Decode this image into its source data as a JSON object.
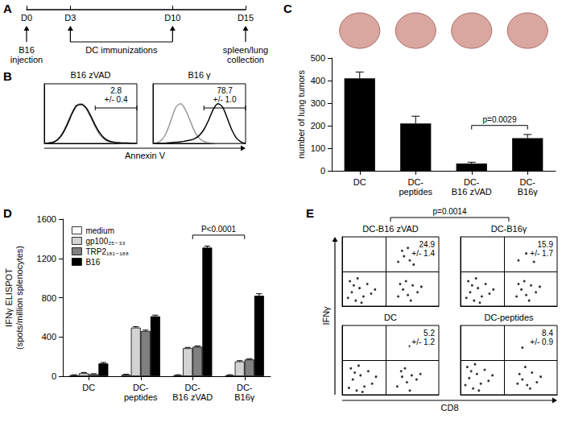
{
  "chart_data": [
    {
      "type": "timeline",
      "panel": "A",
      "xlim": [
        0,
        15
      ],
      "xticks": [
        {
          "value": 0,
          "label": "D0"
        },
        {
          "value": 3,
          "label": "D3"
        },
        {
          "value": 10,
          "label": "D10"
        },
        {
          "value": 15,
          "label": "D15"
        }
      ],
      "annotations": [
        {
          "x": 0,
          "text": "B16 injection"
        },
        {
          "x": [
            3,
            10
          ],
          "text": "DC immunizations"
        },
        {
          "x": 15,
          "text": "spleen/lung collection"
        }
      ]
    },
    {
      "type": "line",
      "panel": "B",
      "xlabel": "Annexin V",
      "tick_labels": false,
      "x": [
        0,
        0.5,
        1,
        1.5,
        2,
        2.5,
        3,
        3.5,
        4,
        4.5,
        5,
        5.5,
        6,
        6.5,
        7,
        7.5,
        8,
        8.5,
        9,
        9.5,
        10
      ],
      "xlim": [
        0,
        10
      ],
      "ylim": [
        0,
        150
      ],
      "subplots": [
        {
          "title": "B16 zVAD",
          "gate": [
            5.5,
            10
          ],
          "annotation": [
            "2.8",
            "+/- 0.4"
          ],
          "series": [
            {
              "color": "#999999",
              "values": [
                0,
                1,
                4,
                12,
                28,
                52,
                78,
                96,
                100,
                88,
                66,
                42,
                22,
                10,
                4,
                2,
                1,
                0,
                0,
                0,
                0
              ]
            },
            {
              "color": "#000000",
              "values": [
                0,
                1,
                3,
                10,
                25,
                48,
                75,
                95,
                98,
                90,
                70,
                46,
                26,
                13,
                6,
                3,
                2,
                1,
                1,
                0,
                0
              ]
            }
          ]
        },
        {
          "title": "B16 γ",
          "gate": [
            5.5,
            10
          ],
          "annotation": [
            "78.7",
            "+/- 1.0"
          ],
          "series": [
            {
              "color": "#999999",
              "values": [
                0,
                2,
                10,
                30,
                62,
                92,
                100,
                85,
                58,
                30,
                13,
                5,
                2,
                1,
                0,
                0,
                0,
                0,
                0,
                0,
                0
              ]
            },
            {
              "color": "#000000",
              "values": [
                0,
                0,
                0,
                1,
                2,
                3,
                4,
                6,
                8,
                12,
                20,
                35,
                58,
                85,
                100,
                92,
                65,
                35,
                14,
                4,
                0
              ]
            }
          ]
        }
      ]
    },
    {
      "type": "bar",
      "panel": "C",
      "ylabel": "number of lung tumors",
      "categories": [
        "DC",
        "DC-peptides",
        "DC-B16 zVAD",
        "DC-B16γ"
      ],
      "values": [
        410,
        210,
        32,
        145
      ],
      "errors": [
        28,
        32,
        6,
        16
      ],
      "color": "#000000",
      "ylim": [
        0,
        500
      ],
      "yticks": [
        0,
        100,
        200,
        300,
        400,
        500
      ],
      "comparisons": [
        {
          "from": "DC-B16 zVAD",
          "to": "DC-B16γ",
          "label": "p=0.0029"
        }
      ]
    },
    {
      "type": "bar",
      "panel": "D",
      "ylabel": "IFNγ ELISPOT (spots/million splenocytes)",
      "categories": [
        "DC",
        "DC-peptides",
        "DC-B16 zVAD",
        "DC-B16γ"
      ],
      "series": [
        {
          "name": "medium",
          "color": "#ffffff",
          "values": [
            10,
            15,
            10,
            10
          ],
          "errors": [
            5,
            5,
            5,
            5
          ]
        },
        {
          "name": "gp100₂₅₋₃₃",
          "color": "#d3d3d3",
          "values": [
            30,
            495,
            285,
            150
          ],
          "errors": [
            8,
            10,
            8,
            8
          ]
        },
        {
          "name": "TRP2₁₈₁₋₁₈₈",
          "color": "#808080",
          "values": [
            20,
            460,
            300,
            170
          ],
          "errors": [
            5,
            10,
            8,
            8
          ]
        },
        {
          "name": "B16",
          "color": "#000000",
          "values": [
            130,
            610,
            1310,
            820
          ],
          "errors": [
            10,
            12,
            15,
            20
          ]
        }
      ],
      "ylim": [
        0,
        1600
      ],
      "yticks": [
        0,
        400,
        800,
        1200,
        1600
      ],
      "legend": "top-left",
      "comparisons": [
        {
          "from": "DC-B16 zVAD",
          "to": "DC-B16γ",
          "label": "P<0.0001"
        }
      ]
    },
    {
      "type": "scatter",
      "panel": "E",
      "xlabel": "CD8",
      "ylabel": "IFNγ",
      "tick_labels": false,
      "xlim": [
        0,
        100
      ],
      "ylim": [
        0,
        100
      ],
      "color": "#000000",
      "comparisons": [
        {
          "from": "DC-B16 zVAD",
          "to": "DC-B16γ",
          "label": "p=0.0014"
        }
      ],
      "subplots": [
        {
          "title": "DC-B16 zVAD",
          "gates": {
            "x": 45,
            "y": 50
          },
          "annotation": [
            "24.9",
            "+/- 1.4"
          ],
          "points": [
            [
              6,
              12
            ],
            [
              10,
              20
            ],
            [
              14,
              8
            ],
            [
              18,
              26
            ],
            [
              22,
              14
            ],
            [
              26,
              32
            ],
            [
              12,
              30
            ],
            [
              30,
              18
            ],
            [
              20,
              5
            ],
            [
              34,
              24
            ],
            [
              8,
              36
            ],
            [
              16,
              40
            ],
            [
              58,
              14
            ],
            [
              63,
              24
            ],
            [
              68,
              16
            ],
            [
              73,
              30
            ],
            [
              66,
              36
            ],
            [
              78,
              20
            ],
            [
              71,
              8
            ],
            [
              60,
              32
            ],
            [
              82,
              28
            ],
            [
              58,
              64
            ],
            [
              64,
              72
            ],
            [
              70,
              66
            ],
            [
              76,
              78
            ],
            [
              68,
              84
            ],
            [
              80,
              70
            ],
            [
              62,
              80
            ],
            [
              74,
              60
            ],
            [
              84,
              86
            ]
          ]
        },
        {
          "title": "DC-B16γ",
          "gates": {
            "x": 45,
            "y": 50
          },
          "annotation": [
            "15.9",
            "+/- 1.7"
          ],
          "points": [
            [
              6,
              12
            ],
            [
              10,
              20
            ],
            [
              14,
              8
            ],
            [
              18,
              26
            ],
            [
              22,
              14
            ],
            [
              26,
              32
            ],
            [
              12,
              30
            ],
            [
              30,
              18
            ],
            [
              20,
              5
            ],
            [
              34,
              24
            ],
            [
              8,
              36
            ],
            [
              16,
              40
            ],
            [
              58,
              14
            ],
            [
              63,
              24
            ],
            [
              68,
              16
            ],
            [
              73,
              30
            ],
            [
              66,
              36
            ],
            [
              78,
              20
            ],
            [
              71,
              8
            ],
            [
              60,
              32
            ],
            [
              82,
              28
            ],
            [
              60,
              66
            ],
            [
              68,
              76
            ],
            [
              76,
              64
            ],
            [
              72,
              84
            ],
            [
              82,
              72
            ]
          ]
        },
        {
          "title": "DC",
          "gates": {
            "x": 45,
            "y": 50
          },
          "annotation": [
            "5.2",
            "+/- 1.2"
          ],
          "points": [
            [
              7,
              10
            ],
            [
              11,
              22
            ],
            [
              15,
              6
            ],
            [
              19,
              28
            ],
            [
              23,
              12
            ],
            [
              27,
              34
            ],
            [
              13,
              32
            ],
            [
              31,
              16
            ],
            [
              21,
              4
            ],
            [
              35,
              26
            ],
            [
              9,
              38
            ],
            [
              17,
              42
            ],
            [
              57,
              12
            ],
            [
              62,
              26
            ],
            [
              67,
              18
            ],
            [
              72,
              28
            ],
            [
              65,
              38
            ],
            [
              77,
              22
            ],
            [
              70,
              6
            ],
            [
              61,
              34
            ],
            [
              81,
              30
            ],
            [
              70,
              70
            ]
          ]
        },
        {
          "title": "DC-peptides",
          "gates": {
            "x": 45,
            "y": 50
          },
          "annotation": [
            "8.4",
            "+/- 0.9"
          ],
          "points": [
            [
              5,
              14
            ],
            [
              9,
              24
            ],
            [
              13,
              9
            ],
            [
              17,
              30
            ],
            [
              21,
              16
            ],
            [
              25,
              36
            ],
            [
              11,
              34
            ],
            [
              29,
              20
            ],
            [
              19,
              6
            ],
            [
              33,
              28
            ],
            [
              7,
              40
            ],
            [
              15,
              44
            ],
            [
              59,
              16
            ],
            [
              64,
              22
            ],
            [
              69,
              14
            ],
            [
              74,
              32
            ],
            [
              67,
              40
            ],
            [
              79,
              18
            ],
            [
              72,
              9
            ],
            [
              61,
              30
            ],
            [
              83,
              26
            ],
            [
              64,
              68
            ],
            [
              76,
              76
            ]
          ]
        }
      ]
    }
  ]
}
